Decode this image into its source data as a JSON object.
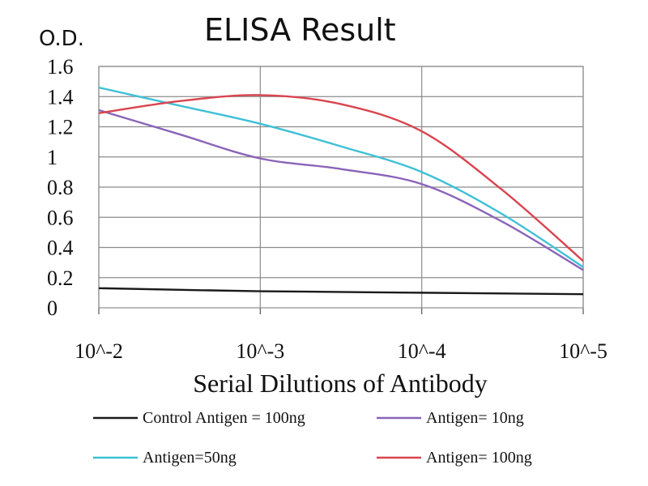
{
  "chart_data": {
    "type": "line",
    "title": "ELISA Result",
    "ylabel": "O.D.",
    "xlabel": "Serial Dilutions of Antibody",
    "x_ticks": [
      "10^-2",
      "10^-3",
      "10^-4",
      "10^-5"
    ],
    "y_ticks": [
      "0",
      "0.2",
      "0.4",
      "0.6",
      "0.8",
      "1",
      "1.2",
      "1.4",
      "1.6"
    ],
    "ylim": [
      0,
      1.6
    ],
    "grid": true,
    "legend_position": "bottom",
    "series": [
      {
        "name": "Control Antigen = 100ng",
        "color": "#1a1a1a",
        "x": [
          2,
          3,
          4,
          5
        ],
        "y": [
          0.13,
          0.11,
          0.1,
          0.09
        ]
      },
      {
        "name": "Antigen= 10ng",
        "color": "#8a64b8",
        "x": [
          2,
          2.5,
          3,
          3.5,
          4,
          4.5,
          5
        ],
        "y": [
          1.31,
          1.15,
          0.99,
          0.92,
          0.82,
          0.57,
          0.25
        ]
      },
      {
        "name": "Antigen=50ng",
        "color": "#3ec0d6",
        "x": [
          2,
          2.5,
          3,
          3.5,
          4,
          4.5,
          5
        ],
        "y": [
          1.46,
          1.34,
          1.22,
          1.07,
          0.9,
          0.62,
          0.27
        ]
      },
      {
        "name": "Antigen= 100ng",
        "color": "#d9454f",
        "x": [
          2,
          2.5,
          3,
          3.5,
          4,
          4.5,
          5
        ],
        "y": [
          1.29,
          1.37,
          1.41,
          1.35,
          1.17,
          0.78,
          0.31
        ]
      }
    ]
  }
}
